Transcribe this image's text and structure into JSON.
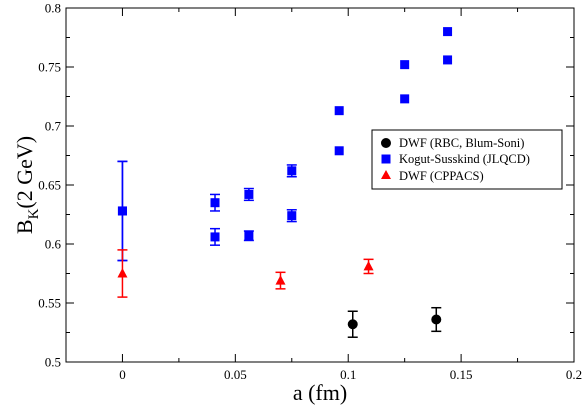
{
  "chart_data": {
    "type": "scatter",
    "xlabel": "a (fm)",
    "ylabel_main": "B",
    "ylabel_sub": "K",
    "ylabel_rest": "(2 GeV)",
    "xlim": [
      -0.025,
      0.2
    ],
    "ylim": [
      0.5,
      0.8
    ],
    "xticks": [
      0,
      0.05,
      0.1,
      0.15,
      0.2
    ],
    "xtick_labels": [
      "0",
      "0.05",
      "0.1",
      "0.15",
      "0.2"
    ],
    "yticks": [
      0.5,
      0.55,
      0.6,
      0.65,
      0.7,
      0.75,
      0.8
    ],
    "ytick_labels": [
      "0.5",
      "0.55",
      "0.6",
      "0.65",
      "0.7",
      "0.75",
      "0.8"
    ],
    "grid": false,
    "legend_position": "right",
    "series": [
      {
        "name": "DWF (RBC, Blum-Soni)",
        "marker": "circle",
        "color": "#000000",
        "points": [
          {
            "x": 0.102,
            "y": 0.532,
            "err": 0.011
          },
          {
            "x": 0.139,
            "y": 0.536,
            "err": 0.01
          }
        ]
      },
      {
        "name": "Kogut-Susskind (JLQCD)",
        "marker": "square",
        "color": "#0000ff",
        "points": [
          {
            "x": 0,
            "y": 0.628,
            "err": 0.042
          },
          {
            "x": 0,
            "y": 0.628,
            "err": 0.042
          },
          {
            "x": 0.041,
            "y": 0.635,
            "err": 0.007
          },
          {
            "x": 0.041,
            "y": 0.606,
            "err": 0.007
          },
          {
            "x": 0.056,
            "y": 0.642,
            "err": 0.005
          },
          {
            "x": 0.056,
            "y": 0.607,
            "err": 0.004
          },
          {
            "x": 0.075,
            "y": 0.662,
            "err": 0.005
          },
          {
            "x": 0.075,
            "y": 0.624,
            "err": 0.005
          },
          {
            "x": 0.096,
            "y": 0.713,
            "err": 0.0
          },
          {
            "x": 0.096,
            "y": 0.679,
            "err": 0.0
          },
          {
            "x": 0.125,
            "y": 0.752,
            "err": 0.0
          },
          {
            "x": 0.125,
            "y": 0.723,
            "err": 0.0
          },
          {
            "x": 0.144,
            "y": 0.78,
            "err": 0.0
          },
          {
            "x": 0.144,
            "y": 0.756,
            "err": 0.0
          }
        ]
      },
      {
        "name": "DWF (CPPACS)",
        "marker": "triangle",
        "color": "#ff0000",
        "points": [
          {
            "x": 0,
            "y": 0.575,
            "err": 0.02
          },
          {
            "x": 0.07,
            "y": 0.569,
            "err": 0.007
          },
          {
            "x": 0.109,
            "y": 0.581,
            "err": 0.006
          }
        ]
      }
    ]
  }
}
